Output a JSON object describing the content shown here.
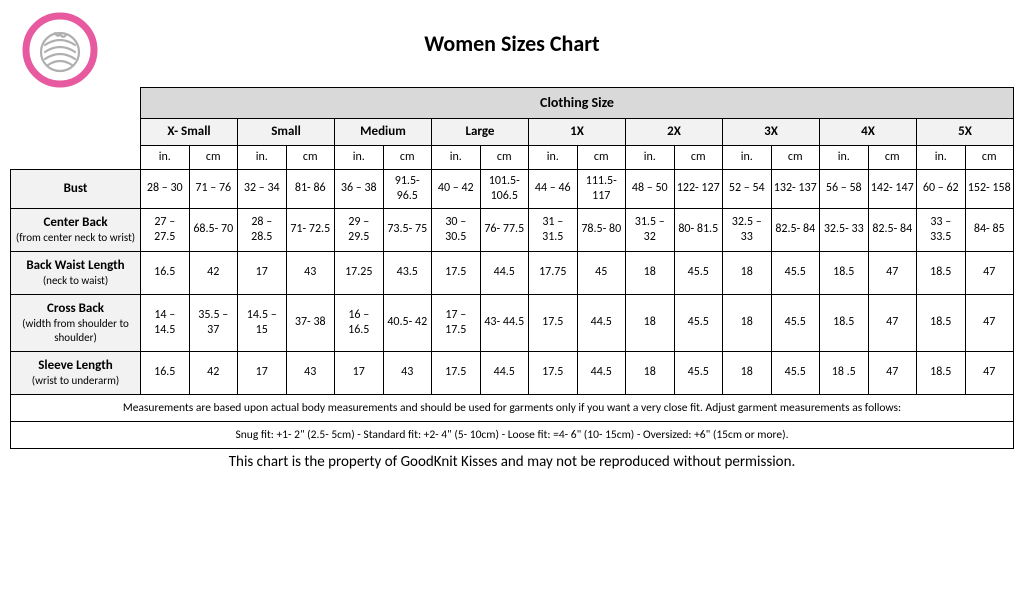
{
  "title": "Women Sizes Chart",
  "logo": {
    "ring_color": "#e85aa0",
    "yarn_color": "#b0b0b0"
  },
  "table": {
    "clothing_label": "Clothing Size",
    "sizes": [
      "X- Small",
      "Small",
      "Medium",
      "Large",
      "1X",
      "2X",
      "3X",
      "4X",
      "5X"
    ],
    "units": [
      "in.",
      "cm"
    ],
    "rows": [
      {
        "label_main": "Bust",
        "label_sub": "",
        "cells": [
          "28 – 30",
          "71 – 76",
          "32 – 34",
          "81- 86",
          "36 – 38",
          "91.5- 96.5",
          "40 – 42",
          "101.5- 106.5",
          "44 – 46",
          "111.5- 117",
          "48 – 50",
          "122- 127",
          "52 – 54",
          "132- 137",
          "56 – 58",
          "142- 147",
          "60 – 62",
          "152- 158"
        ]
      },
      {
        "label_main": "Center Back",
        "label_sub": "(from center neck to wrist)",
        "cells": [
          "27 – 27.5",
          "68.5- 70",
          "28 – 28.5",
          "71- 72.5",
          "29 – 29.5",
          "73.5- 75",
          "30 – 30.5",
          "76- 77.5",
          "31 – 31.5",
          "78.5- 80",
          "31.5 – 32",
          "80- 81.5",
          "32.5 – 33",
          "82.5- 84",
          "32.5- 33",
          "82.5- 84",
          "33 – 33.5",
          "84- 85"
        ]
      },
      {
        "label_main": "Back Waist Length",
        "label_sub": "(neck to waist)",
        "cells": [
          "16.5",
          "42",
          "17",
          "43",
          "17.25",
          "43.5",
          "17.5",
          "44.5",
          "17.75",
          "45",
          "18",
          "45.5",
          "18",
          "45.5",
          "18.5",
          "47",
          "18.5",
          "47"
        ]
      },
      {
        "label_main": "Cross Back",
        "label_sub": "(width from shoulder to shoulder)",
        "cells": [
          "14 – 14.5",
          "35.5 – 37",
          "14.5 – 15",
          "37- 38",
          "16 – 16.5",
          "40.5- 42",
          "17 – 17.5",
          "43- 44.5",
          "17.5",
          "44.5",
          "18",
          "45.5",
          "18",
          "45.5",
          "18.5",
          "47",
          "18.5",
          "47"
        ]
      },
      {
        "label_main": "Sleeve Length",
        "label_sub": "(wrist to underarm)",
        "cells": [
          "16.5",
          "42",
          "17",
          "43",
          "17",
          "43",
          "17.5",
          "44.5",
          "17.5",
          "44.5",
          "18",
          "45.5",
          "18",
          "45.5",
          "18 .5",
          "47",
          "18.5",
          "47"
        ]
      }
    ],
    "note1": "Measurements are based upon actual body measurements and should be used for garments only if you want a very close fit.  Adjust garment measurements as follows:",
    "note2": "Snug fit: +1- 2\" (2.5- 5cm) -  Standard fit: +2- 4\" (5- 10cm) -  Loose fit: =4- 6\" (10- 15cm) -   Oversized: +6\" (15cm or more)."
  },
  "footer": "This chart is the property of GoodKnit Kisses and may not be reproduced without permission."
}
